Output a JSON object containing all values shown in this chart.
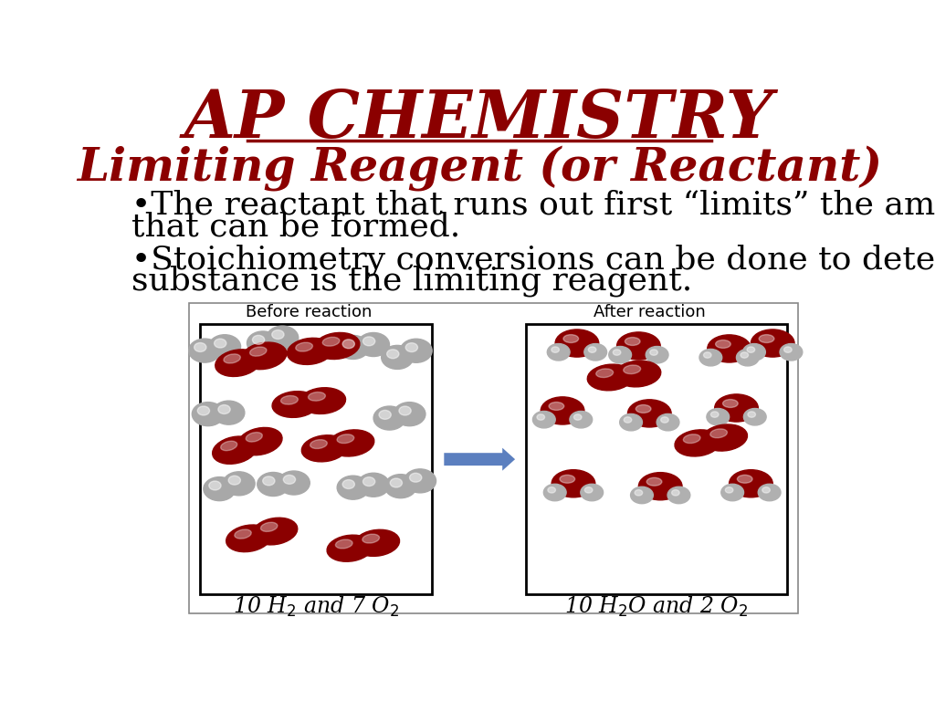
{
  "title": "AP CHEMISTRY",
  "title_color": "#8B0000",
  "title_fontsize": 52,
  "subtitle": "Limiting Reagent (or Reactant)",
  "subtitle_color": "#8B0000",
  "subtitle_fontsize": 36,
  "bullet1_line1": "•The reactant that runs out first “limits” the amount of product",
  "bullet1_line2": "that can be formed.",
  "bullet2_line1": "•Stoichiometry conversions can be done to determine which",
  "bullet2_line2": "substance is the limiting reagent.",
  "bullet_color": "#000000",
  "bullet_fontsize": 26,
  "before_label": "Before reaction",
  "after_label": "After reaction",
  "bg_color": "#FFFFFF",
  "box_color": "#000000",
  "arrow_color": "#5B7FBF"
}
